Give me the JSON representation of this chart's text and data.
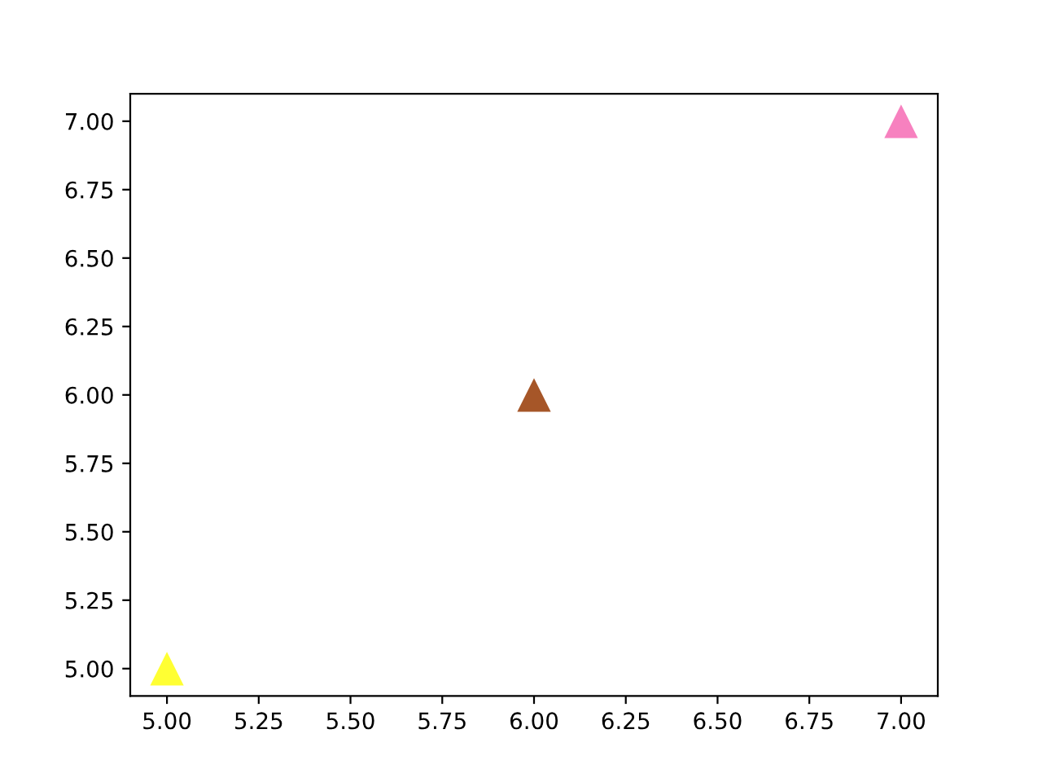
{
  "chart_data": {
    "type": "scatter",
    "x": [
      5,
      6,
      7
    ],
    "values": [
      5,
      6,
      7
    ],
    "colors": [
      "#ffff33",
      "#a65628",
      "#f781bf"
    ],
    "marker": "triangle",
    "xlim": [
      4.9,
      7.1
    ],
    "ylim": [
      4.9,
      7.1
    ],
    "xticks": [
      {
        "value": 5,
        "label": "5.00"
      },
      {
        "value": 5.25,
        "label": "5.25"
      },
      {
        "value": 5.5,
        "label": "5.50"
      },
      {
        "value": 5.75,
        "label": "5.75"
      },
      {
        "value": 6,
        "label": "6.00"
      },
      {
        "value": 6.25,
        "label": "6.25"
      },
      {
        "value": 6.5,
        "label": "6.50"
      },
      {
        "value": 6.75,
        "label": "6.75"
      },
      {
        "value": 7,
        "label": "7.00"
      }
    ],
    "yticks": [
      {
        "value": 5,
        "label": "5.00"
      },
      {
        "value": 5.25,
        "label": "5.25"
      },
      {
        "value": 5.5,
        "label": "5.50"
      },
      {
        "value": 5.75,
        "label": "5.75"
      },
      {
        "value": 6,
        "label": "6.00"
      },
      {
        "value": 6.25,
        "label": "6.25"
      },
      {
        "value": 6.5,
        "label": "6.50"
      },
      {
        "value": 6.75,
        "label": "6.75"
      },
      {
        "value": 7,
        "label": "7.00"
      }
    ],
    "grid": false,
    "legend": false
  }
}
